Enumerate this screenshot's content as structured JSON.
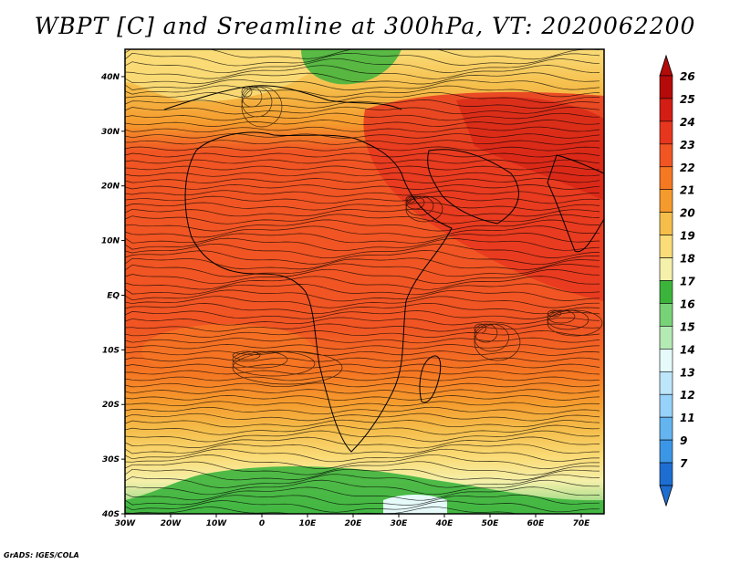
{
  "title": "WBPT [C] and Sreamline at 300hPa, VT: 2020062200",
  "credit": "GrADS: IGES/COLA",
  "map": {
    "projection": "latlon",
    "lon_range": [
      -30,
      75
    ],
    "lat_range": [
      -40,
      45
    ],
    "lat_labels": [
      {
        "lat": 40,
        "text": "40N"
      },
      {
        "lat": 30,
        "text": "30N"
      },
      {
        "lat": 20,
        "text": "20N"
      },
      {
        "lat": 10,
        "text": "10N"
      },
      {
        "lat": 0,
        "text": "EQ"
      },
      {
        "lat": -10,
        "text": "10S"
      },
      {
        "lat": -20,
        "text": "20S"
      },
      {
        "lat": -30,
        "text": "30S"
      },
      {
        "lat": -40,
        "text": "40S"
      }
    ],
    "lon_labels": [
      {
        "lon": -30,
        "text": "30W"
      },
      {
        "lon": -20,
        "text": "20W"
      },
      {
        "lon": -10,
        "text": "10W"
      },
      {
        "lon": 0,
        "text": "0"
      },
      {
        "lon": 10,
        "text": "10E"
      },
      {
        "lon": 20,
        "text": "20E"
      },
      {
        "lon": 30,
        "text": "30E"
      },
      {
        "lon": 40,
        "text": "40E"
      },
      {
        "lon": 50,
        "text": "50E"
      },
      {
        "lon": 60,
        "text": "60E"
      },
      {
        "lon": 70,
        "text": "70E"
      }
    ]
  },
  "colorbar": {
    "labels": [
      "26",
      "25",
      "24",
      "23",
      "22",
      "21",
      "20",
      "19",
      "18",
      "17",
      "16",
      "15",
      "14",
      "13",
      "12",
      "11",
      "9",
      "7"
    ],
    "colors": [
      "#b40a0a",
      "#d21e14",
      "#e6371e",
      "#f05523",
      "#f57823",
      "#f59b2d",
      "#f5be4b",
      "#fadc78",
      "#f5f0aa",
      "#3cb43c",
      "#78d278",
      "#b4ebb4",
      "#e6fafa",
      "#bee6fa",
      "#96d2fa",
      "#64b4f0",
      "#3c96e6",
      "#1e6ed2"
    ]
  }
}
